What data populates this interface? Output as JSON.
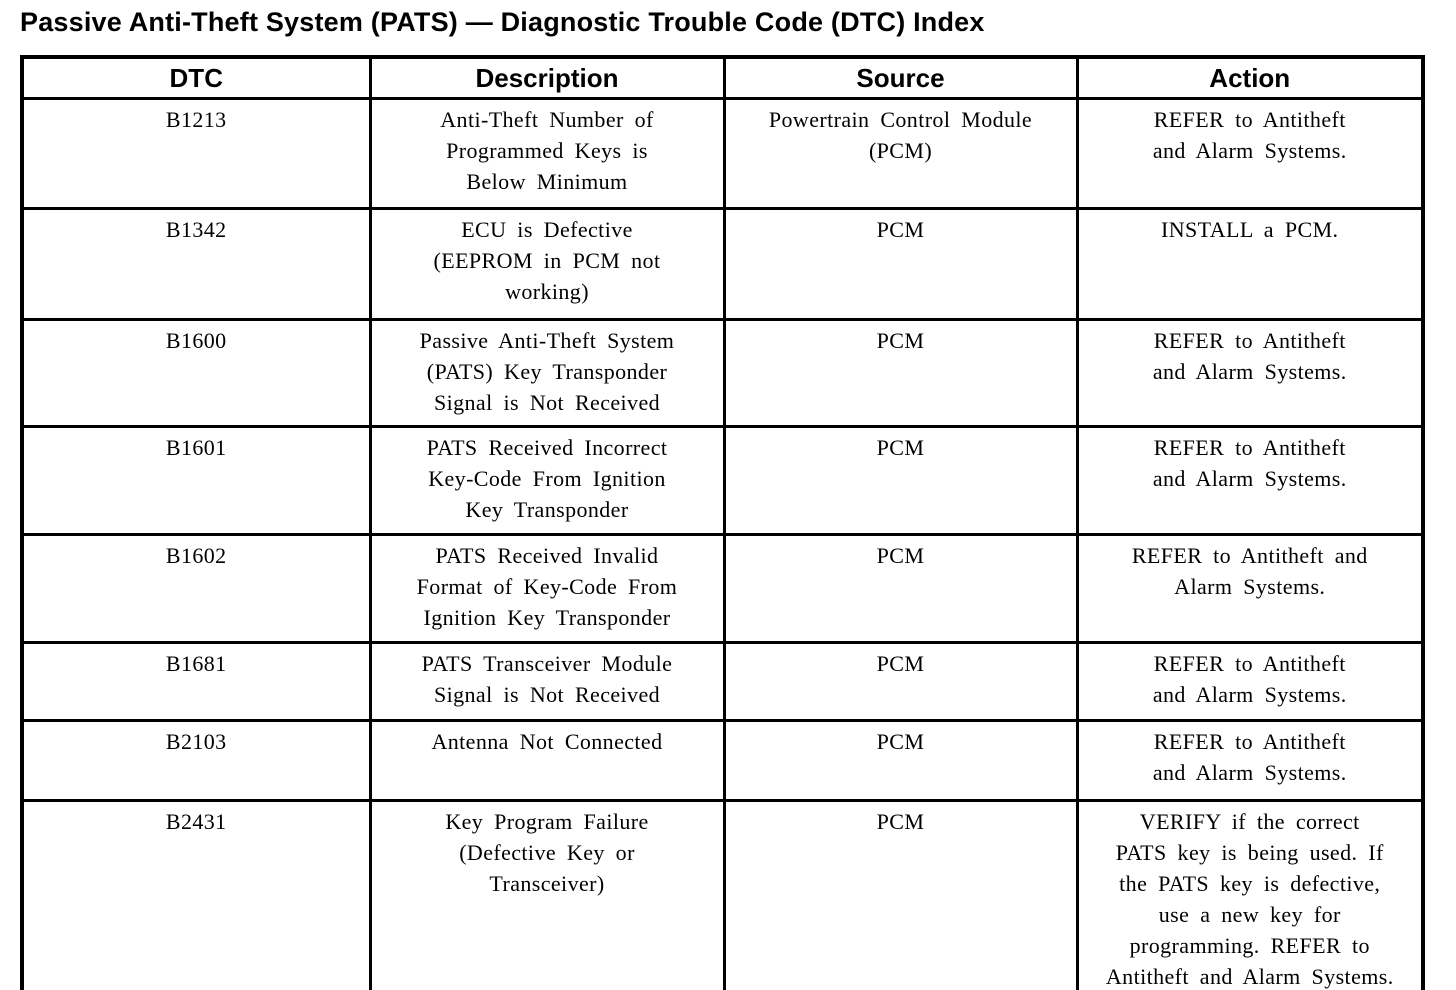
{
  "page_title": "Passive Anti-Theft System (PATS) — Diagnostic Trouble Code (DTC) Index",
  "table": {
    "headers": [
      "DTC",
      "Description",
      "Source",
      "Action"
    ],
    "rows": [
      {
        "dtc": "B1213",
        "description": "Anti-Theft Number of\nProgrammed Keys is\nBelow Minimum",
        "source": "Powertrain Control Module\n(PCM)",
        "action": "REFER to Antitheft\nand Alarm Systems."
      },
      {
        "dtc": "B1342",
        "description": "ECU is Defective\n(EEPROM in PCM not\nworking)",
        "source": "PCM",
        "action": "INSTALL a PCM."
      },
      {
        "dtc": "B1600",
        "description": "Passive Anti-Theft System\n(PATS) Key Transponder\nSignal is Not Received",
        "source": "PCM",
        "action": "REFER to Antitheft\nand Alarm Systems."
      },
      {
        "dtc": "B1601",
        "description": "PATS Received Incorrect\nKey-Code From Ignition\nKey Transponder",
        "source": "PCM",
        "action": "REFER to Antitheft\nand Alarm Systems."
      },
      {
        "dtc": "B1602",
        "description": "PATS Received Invalid\nFormat of Key-Code From\nIgnition Key Transponder",
        "source": "PCM",
        "action": "REFER to Antitheft and\nAlarm Systems."
      },
      {
        "dtc": "B1681",
        "description": "PATS Transceiver Module\nSignal is Not Received",
        "source": "PCM",
        "action": "REFER to Antitheft\nand Alarm Systems."
      },
      {
        "dtc": "B2103",
        "description": "Antenna Not Connected",
        "source": "PCM",
        "action": "REFER to Antitheft\nand Alarm Systems."
      },
      {
        "dtc": "B2431",
        "description": "Key Program Failure\n(Defective Key or\nTransceiver)",
        "source": "PCM",
        "action": "VERIFY if the correct\nPATS key is being used. If\nthe PATS key is defective,\nuse a new key for\nprogramming. REFER to\nAntitheft and Alarm Systems."
      }
    ]
  }
}
